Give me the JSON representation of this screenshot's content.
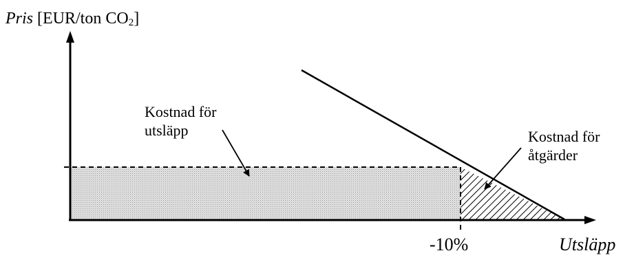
{
  "axes": {
    "y_label_italic": "Pris",
    "y_label_unit": "[EUR/ton CO",
    "y_label_sub": "2",
    "y_label_close": "]",
    "x_label": "Utsläpp",
    "x_tick": "-10%"
  },
  "annotations": {
    "cost_emissions_line1": "Kostnad för",
    "cost_emissions_line2": "utsläpp",
    "cost_measures_line1": "Kostnad för",
    "cost_measures_line2": "åtgärder"
  }
}
